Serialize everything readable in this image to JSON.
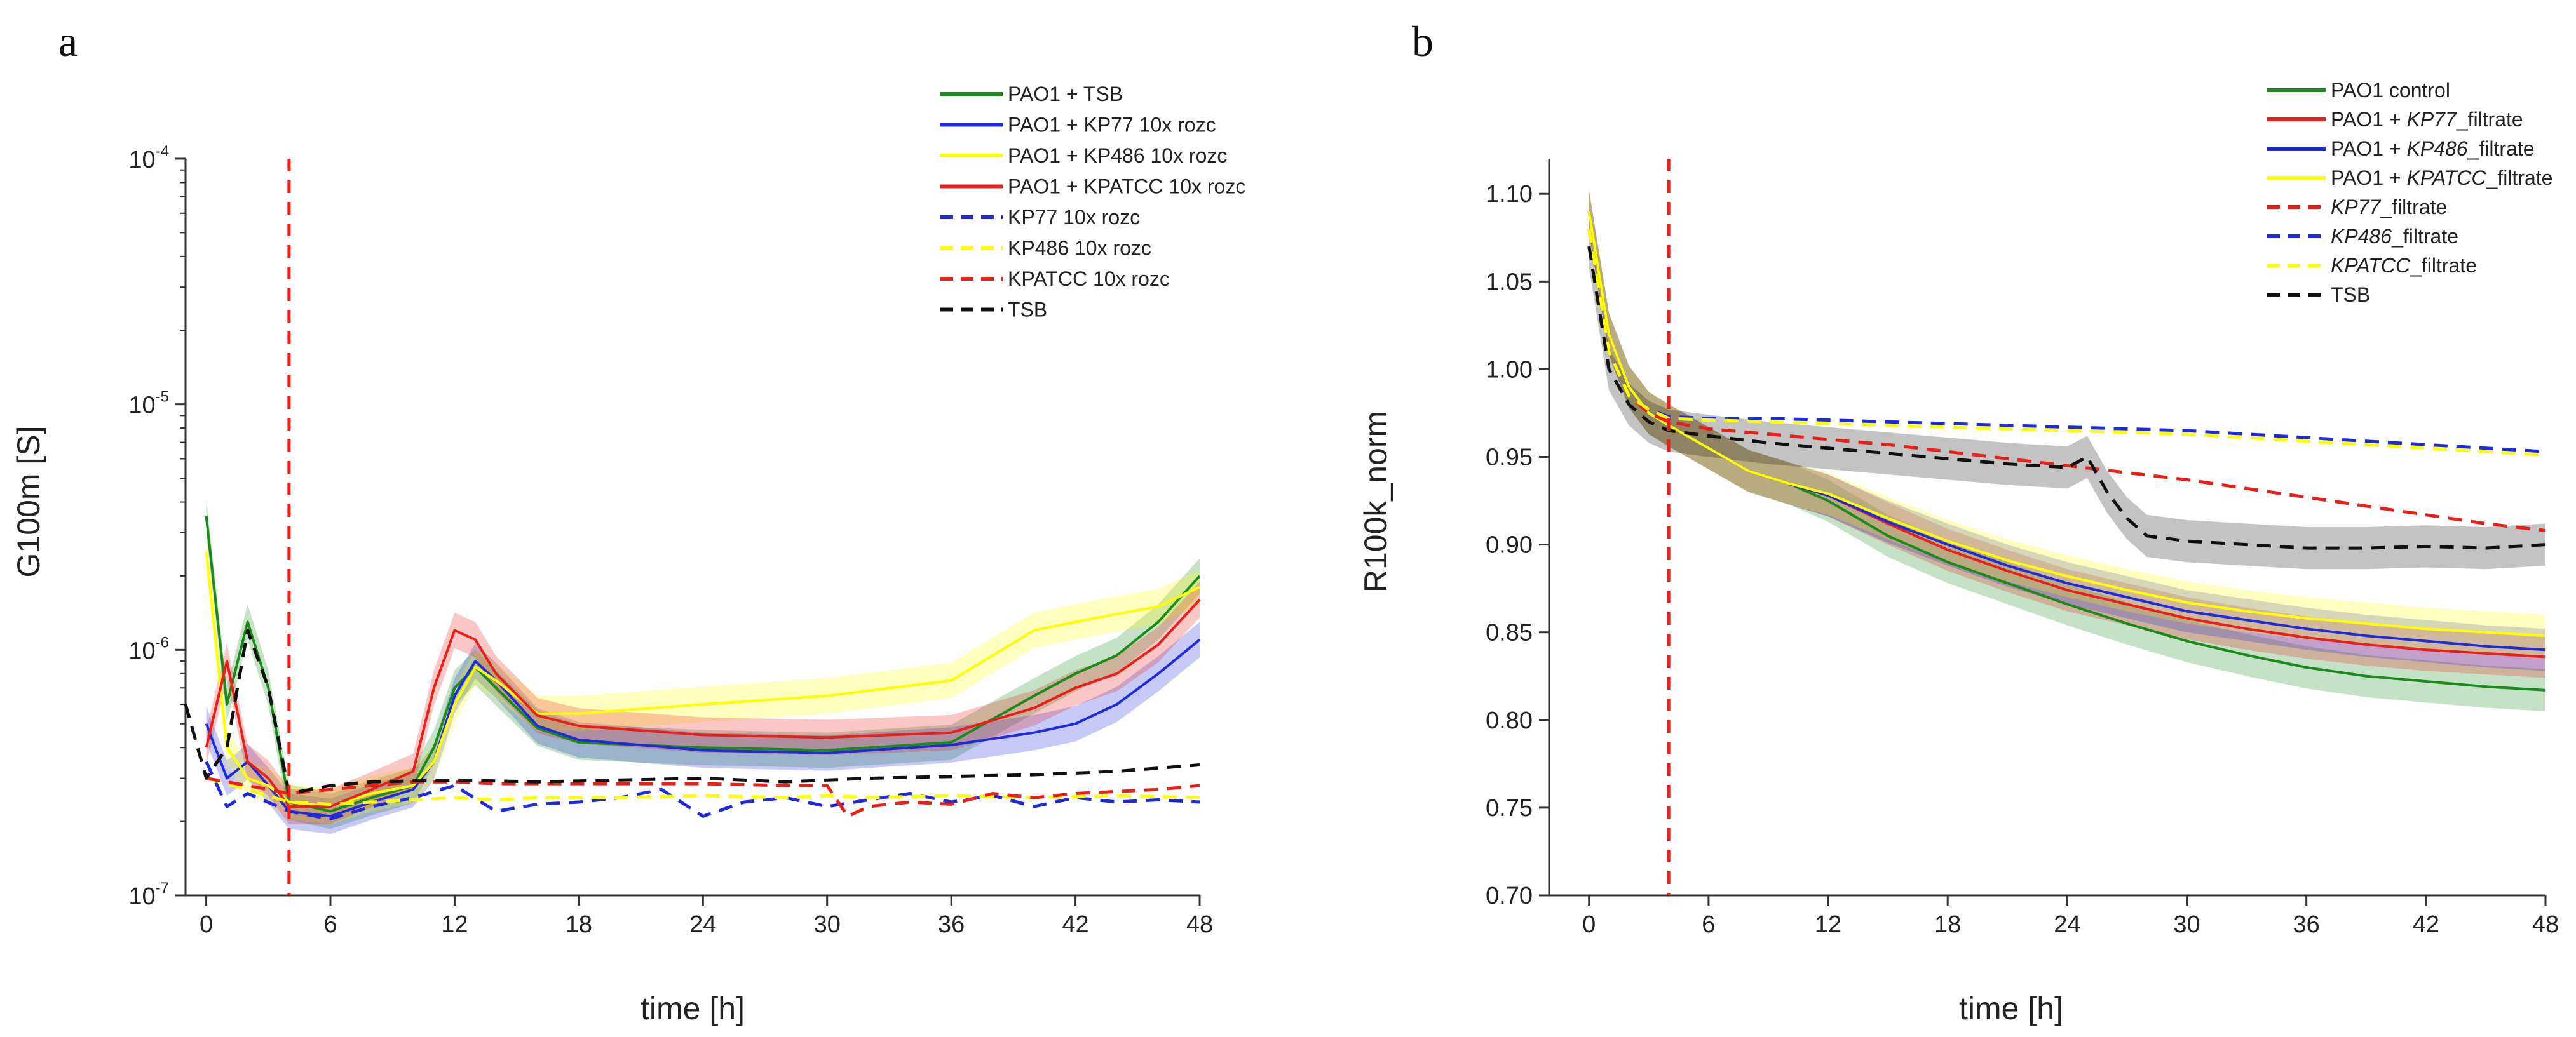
{
  "chart_data": [
    {
      "type": "line",
      "panel": "a",
      "xlabel": "time [h]",
      "ylabel": "G100m [S]",
      "xlim": [
        -1,
        48
      ],
      "ylim": [
        1e-07,
        0.0001
      ],
      "yscale": "log",
      "x_ticks": [
        0,
        6,
        12,
        18,
        24,
        30,
        36,
        42,
        48
      ],
      "y_ticks": [
        {
          "value": 1e-07,
          "base": "10",
          "exp": "-7"
        },
        {
          "value": 1e-06,
          "base": "10",
          "exp": "-6"
        },
        {
          "value": 1e-05,
          "base": "10",
          "exp": "-5"
        },
        {
          "value": 0.0001,
          "base": "10",
          "exp": "-4"
        }
      ],
      "marker_line": {
        "x": 4,
        "color": "#e8201a",
        "style": "dashed"
      },
      "legend_position": "top-right",
      "series": [
        {
          "name": "PAO1 + TSB",
          "color": "#1b8a1b",
          "dash": "solid",
          "band": true,
          "x": [
            0,
            1,
            2,
            3,
            4,
            6,
            8,
            10,
            11,
            12,
            13,
            14,
            16,
            18,
            24,
            30,
            36,
            40,
            42,
            44,
            46,
            48
          ],
          "values": [
            3.5e-06,
            6e-07,
            1.3e-06,
            7e-07,
            2.4e-07,
            2.2e-07,
            2.5e-07,
            2.8e-07,
            4e-07,
            7e-07,
            8.5e-07,
            7e-07,
            4.8e-07,
            4.2e-07,
            4e-07,
            3.9e-07,
            4.2e-07,
            6.5e-07,
            8e-07,
            9.5e-07,
            1.3e-06,
            2e-06
          ]
        },
        {
          "name": "PAO1 + KP77 10x rozc",
          "color": "#1f2bdb",
          "dash": "solid",
          "band": true,
          "x": [
            0,
            1,
            2,
            3,
            4,
            6,
            8,
            10,
            11,
            12,
            13,
            14,
            16,
            18,
            24,
            30,
            36,
            40,
            42,
            44,
            46,
            48
          ],
          "values": [
            5e-07,
            3e-07,
            3.5e-07,
            2.8e-07,
            2.2e-07,
            2.1e-07,
            2.4e-07,
            2.7e-07,
            3.5e-07,
            6.5e-07,
            9e-07,
            7.5e-07,
            4.9e-07,
            4.3e-07,
            3.9e-07,
            3.8e-07,
            4.1e-07,
            4.6e-07,
            5e-07,
            6e-07,
            8e-07,
            1.1e-06
          ]
        },
        {
          "name": "PAO1 + KP486 10x rozc",
          "color": "#ffff00",
          "dash": "solid",
          "band": true,
          "x": [
            0,
            1,
            2,
            3,
            4,
            6,
            8,
            10,
            11,
            12,
            13,
            14,
            16,
            18,
            24,
            30,
            36,
            40,
            42,
            44,
            46,
            48
          ],
          "values": [
            2.5e-06,
            4e-07,
            3e-07,
            2.8e-07,
            2.4e-07,
            2.3e-07,
            2.6e-07,
            2.8e-07,
            3.5e-07,
            6e-07,
            8.5e-07,
            7.5e-07,
            5.5e-07,
            5.5e-07,
            6e-07,
            6.5e-07,
            7.5e-07,
            1.2e-06,
            1.3e-06,
            1.4e-06,
            1.5e-06,
            1.8e-06
          ]
        },
        {
          "name": "PAO1 + KPATCC 10x rozc",
          "color": "#e8201a",
          "dash": "solid",
          "band": true,
          "x": [
            0,
            1,
            2,
            3,
            4,
            6,
            8,
            10,
            11,
            12,
            13,
            14,
            16,
            18,
            24,
            30,
            36,
            40,
            42,
            44,
            46,
            48
          ],
          "values": [
            4e-07,
            9e-07,
            3.5e-07,
            3e-07,
            2.3e-07,
            2.3e-07,
            2.7e-07,
            3.2e-07,
            7e-07,
            1.2e-06,
            1.1e-06,
            8e-07,
            5.4e-07,
            4.9e-07,
            4.5e-07,
            4.4e-07,
            4.6e-07,
            5.8e-07,
            7e-07,
            8e-07,
            1.05e-06,
            1.6e-06
          ]
        },
        {
          "name": "KP77 10x rozc",
          "color": "#1f2bdb",
          "dash": "dashed",
          "band": false,
          "x": [
            0,
            1,
            2,
            4,
            6,
            8,
            10,
            12,
            14,
            16,
            18,
            20,
            22,
            24,
            26,
            28,
            30,
            32,
            34,
            36,
            38,
            40,
            42,
            44,
            46,
            48
          ],
          "values": [
            3.5e-07,
            2.3e-07,
            2.6e-07,
            2.2e-07,
            2.05e-07,
            2.3e-07,
            2.5e-07,
            2.8e-07,
            2.2e-07,
            2.35e-07,
            2.4e-07,
            2.5e-07,
            2.7e-07,
            2.1e-07,
            2.4e-07,
            2.5e-07,
            2.3e-07,
            2.45e-07,
            2.6e-07,
            2.4e-07,
            2.55e-07,
            2.3e-07,
            2.5e-07,
            2.4e-07,
            2.45e-07,
            2.4e-07
          ]
        },
        {
          "name": "KP486 10x rozc",
          "color": "#ffff00",
          "dash": "dashed",
          "band": false,
          "x": [
            0,
            2,
            4,
            6,
            8,
            10,
            12,
            14,
            16,
            18,
            20,
            24,
            28,
            30,
            32,
            36,
            40,
            44,
            48
          ],
          "values": [
            3e-07,
            2.7e-07,
            2.4e-07,
            2.35e-07,
            2.4e-07,
            2.45e-07,
            2.5e-07,
            2.45e-07,
            2.5e-07,
            2.5e-07,
            2.5e-07,
            2.55e-07,
            2.5e-07,
            2.55e-07,
            2.5e-07,
            2.55e-07,
            2.5e-07,
            2.55e-07,
            2.5e-07
          ]
        },
        {
          "name": "KPATCC 10x rozc",
          "color": "#e8201a",
          "dash": "dashed",
          "band": false,
          "x": [
            0,
            2,
            4,
            6,
            8,
            10,
            12,
            14,
            16,
            18,
            20,
            24,
            28,
            30,
            31,
            32,
            34,
            36,
            38,
            40,
            42,
            44,
            46,
            48
          ],
          "values": [
            3e-07,
            2.8e-07,
            2.6e-07,
            2.7e-07,
            2.8e-07,
            2.9e-07,
            2.9e-07,
            2.85e-07,
            2.85e-07,
            2.85e-07,
            2.85e-07,
            2.85e-07,
            2.8e-07,
            2.8e-07,
            2.1e-07,
            2.3e-07,
            2.4e-07,
            2.35e-07,
            2.6e-07,
            2.5e-07,
            2.6e-07,
            2.65e-07,
            2.7e-07,
            2.8e-07
          ]
        },
        {
          "name": "TSB",
          "color": "#111111",
          "dash": "dashed",
          "band": false,
          "x": [
            -1,
            0,
            1,
            2,
            3,
            4,
            6,
            8,
            12,
            16,
            20,
            24,
            28,
            32,
            36,
            40,
            44,
            48
          ],
          "values": [
            6e-07,
            3e-07,
            4e-07,
            1.2e-06,
            7e-07,
            2.6e-07,
            2.8e-07,
            2.9e-07,
            2.95e-07,
            2.9e-07,
            2.95e-07,
            3e-07,
            2.9e-07,
            3e-07,
            3.05e-07,
            3.1e-07,
            3.2e-07,
            3.4e-07
          ]
        }
      ]
    },
    {
      "type": "line",
      "panel": "b",
      "xlabel": "time [h]",
      "ylabel": "R100k_norm",
      "xlim": [
        -2,
        48
      ],
      "ylim": [
        0.7,
        1.12
      ],
      "x_ticks": [
        0,
        6,
        12,
        18,
        24,
        30,
        36,
        42,
        48
      ],
      "y_ticks": [
        "0.70",
        "0.75",
        "0.80",
        "0.85",
        "0.90",
        "0.95",
        "1.00",
        "1.05",
        "1.10"
      ],
      "marker_line": {
        "x": 4,
        "color": "#e8201a",
        "style": "dashed"
      },
      "legend_position": "top-right",
      "series": [
        {
          "name": "PAO1 control",
          "name_parts": [
            "PAO1 control"
          ],
          "color": "#1b8a1b",
          "dash": "solid",
          "band": true,
          "x": [
            0,
            1,
            2,
            3,
            4,
            6,
            8,
            10,
            12,
            15,
            18,
            21,
            24,
            27,
            30,
            33,
            36,
            39,
            42,
            45,
            48
          ],
          "values": [
            1.09,
            1.02,
            0.99,
            0.975,
            0.968,
            0.955,
            0.942,
            0.935,
            0.925,
            0.905,
            0.89,
            0.878,
            0.866,
            0.855,
            0.845,
            0.837,
            0.83,
            0.825,
            0.822,
            0.819,
            0.817
          ]
        },
        {
          "name": "PAO1 + KP77_filtrate",
          "name_parts": [
            "PAO1 + ",
            "KP77",
            "_filtrate"
          ],
          "color": "#e8201a",
          "dash": "solid",
          "band": true,
          "x": [
            0,
            1,
            2,
            3,
            4,
            6,
            8,
            10,
            12,
            15,
            18,
            21,
            24,
            27,
            30,
            33,
            36,
            39,
            42,
            45,
            48
          ],
          "values": [
            1.09,
            1.02,
            0.99,
            0.975,
            0.968,
            0.955,
            0.942,
            0.935,
            0.928,
            0.912,
            0.897,
            0.885,
            0.874,
            0.866,
            0.858,
            0.852,
            0.847,
            0.843,
            0.84,
            0.838,
            0.836
          ]
        },
        {
          "name": "PAO1 + KP486_filtrate",
          "name_parts": [
            "PAO1 + ",
            "KP486",
            "_filtrate"
          ],
          "color": "#1f2bdb",
          "dash": "solid",
          "band": true,
          "x": [
            0,
            1,
            2,
            3,
            4,
            6,
            8,
            10,
            12,
            15,
            18,
            21,
            24,
            27,
            30,
            33,
            36,
            39,
            42,
            45,
            48
          ],
          "values": [
            1.09,
            1.02,
            0.99,
            0.975,
            0.968,
            0.955,
            0.942,
            0.935,
            0.928,
            0.913,
            0.9,
            0.888,
            0.878,
            0.87,
            0.862,
            0.857,
            0.852,
            0.848,
            0.845,
            0.842,
            0.84
          ]
        },
        {
          "name": "PAO1 + KPATCC_filtrate",
          "name_parts": [
            "PAO1 + ",
            "KPATCC",
            "_filtrate"
          ],
          "color": "#ffff00",
          "dash": "solid",
          "band": true,
          "x": [
            0,
            1,
            2,
            3,
            4,
            6,
            8,
            10,
            12,
            15,
            18,
            21,
            24,
            27,
            30,
            33,
            36,
            39,
            42,
            45,
            48
          ],
          "values": [
            1.09,
            1.02,
            0.99,
            0.975,
            0.968,
            0.955,
            0.942,
            0.935,
            0.929,
            0.915,
            0.902,
            0.891,
            0.882,
            0.874,
            0.867,
            0.862,
            0.858,
            0.855,
            0.852,
            0.85,
            0.848
          ]
        },
        {
          "name": "KP77_filtrate",
          "name_parts": [
            "",
            "KP77",
            "_filtrate"
          ],
          "color": "#e8201a",
          "dash": "dashed",
          "band": false,
          "x": [
            0,
            1,
            2,
            3,
            4,
            6,
            9,
            12,
            15,
            18,
            21,
            24,
            27,
            30,
            33,
            36,
            39,
            42,
            45,
            48
          ],
          "values": [
            1.08,
            1.01,
            0.985,
            0.975,
            0.97,
            0.966,
            0.963,
            0.96,
            0.957,
            0.953,
            0.949,
            0.945,
            0.941,
            0.937,
            0.932,
            0.927,
            0.922,
            0.917,
            0.912,
            0.908
          ]
        },
        {
          "name": "KP486_filtrate",
          "name_parts": [
            "",
            "KP486",
            "_filtrate"
          ],
          "color": "#1f2bdb",
          "dash": "dashed",
          "band": false,
          "x": [
            0,
            1,
            2,
            3,
            4,
            6,
            9,
            12,
            15,
            18,
            21,
            24,
            27,
            30,
            33,
            36,
            39,
            42,
            45,
            48
          ],
          "values": [
            1.08,
            1.01,
            0.985,
            0.977,
            0.973,
            0.972,
            0.972,
            0.971,
            0.97,
            0.969,
            0.968,
            0.967,
            0.966,
            0.965,
            0.963,
            0.961,
            0.959,
            0.957,
            0.955,
            0.953
          ]
        },
        {
          "name": "KPATCC_filtrate",
          "name_parts": [
            "",
            "KPATCC",
            "_filtrate"
          ],
          "color": "#ffff00",
          "dash": "dashed",
          "band": false,
          "x": [
            0,
            1,
            2,
            3,
            4,
            6,
            9,
            12,
            15,
            18,
            21,
            24,
            27,
            30,
            33,
            36,
            39,
            42,
            45,
            48
          ],
          "values": [
            1.08,
            1.01,
            0.985,
            0.977,
            0.972,
            0.971,
            0.97,
            0.969,
            0.968,
            0.967,
            0.966,
            0.965,
            0.964,
            0.963,
            0.961,
            0.959,
            0.957,
            0.955,
            0.953,
            0.951
          ]
        },
        {
          "name": "TSB",
          "name_parts": [
            "TSB"
          ],
          "color": "#111111",
          "dash": "dashed",
          "band": true,
          "x": [
            0,
            1,
            2,
            3,
            4,
            6,
            9,
            12,
            15,
            18,
            21,
            24,
            25,
            26,
            27,
            28,
            30,
            33,
            36,
            39,
            42,
            45,
            48
          ],
          "values": [
            1.07,
            1.0,
            0.98,
            0.97,
            0.965,
            0.962,
            0.958,
            0.955,
            0.952,
            0.949,
            0.946,
            0.944,
            0.95,
            0.93,
            0.915,
            0.905,
            0.902,
            0.9,
            0.898,
            0.898,
            0.899,
            0.898,
            0.9
          ]
        }
      ]
    }
  ]
}
